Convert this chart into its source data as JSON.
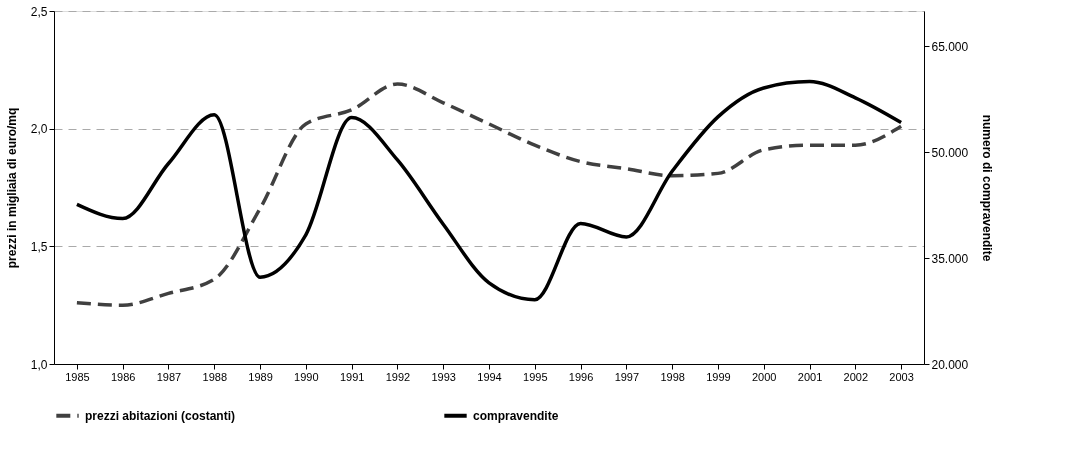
{
  "chart_data": {
    "type": "line",
    "ylabel": "prezzi in migliaia di euro/mq",
    "y2label": "numero di compravendite",
    "categories": [
      "1985",
      "1986",
      "1987",
      "1988",
      "1989",
      "1990",
      "1991",
      "1992",
      "1993",
      "1994",
      "1995",
      "1996",
      "1997",
      "1998",
      "1999",
      "2000",
      "2001",
      "2002",
      "2003"
    ],
    "series": [
      {
        "name": "prezzi abitazioni (costanti)",
        "color": "#404040",
        "line_style": "dashed",
        "axis": "y",
        "values": [
          1.26,
          1.25,
          1.3,
          1.36,
          1.66,
          2.02,
          2.08,
          2.19,
          2.11,
          2.02,
          1.93,
          1.86,
          1.83,
          1.8,
          1.81,
          1.91,
          1.93,
          1.93,
          2.01
        ]
      },
      {
        "name": "compravendite",
        "color": "#000000",
        "line_style": "solid",
        "axis": "y2",
        "values": [
          42600,
          40600,
          48400,
          55300,
          32300,
          38300,
          54900,
          48900,
          39800,
          31500,
          29100,
          39900,
          38000,
          47300,
          55000,
          59100,
          60000,
          57700,
          54200
        ]
      }
    ],
    "ylim": [
      1.0,
      2.5
    ],
    "yticks": [
      {
        "value": 1.0,
        "label": "1,0"
      },
      {
        "value": 1.5,
        "label": "1,5"
      },
      {
        "value": 2.0,
        "label": "2,0"
      },
      {
        "value": 2.5,
        "label": "2,5"
      }
    ],
    "y2lim": [
      20000,
      70000
    ],
    "y2ticks": [
      {
        "value": 20000,
        "label": "20.000"
      },
      {
        "value": 35000,
        "label": "35.000"
      },
      {
        "value": 50000,
        "label": "50.000"
      },
      {
        "value": 65000,
        "label": "65.000"
      }
    ],
    "grid": "y",
    "legend": "bottom"
  }
}
